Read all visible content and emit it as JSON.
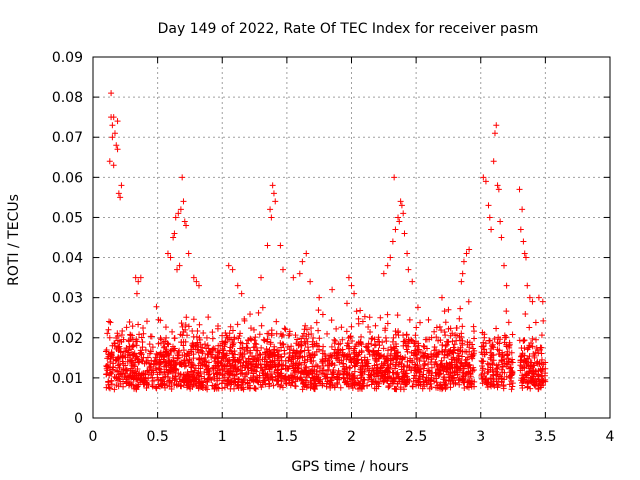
{
  "chart_data": {
    "type": "scatter",
    "title": "Day 149 of 2022, Rate Of TEC Index for receiver pasm",
    "xlabel": "GPS time / hours",
    "ylabel": "ROTI / TECUs",
    "xlim": [
      0,
      4
    ],
    "ylim": [
      0,
      0.09
    ],
    "xticks": [
      "0",
      "0.5",
      "1",
      "1.5",
      "2",
      "2.5",
      "3",
      "3.5",
      "4"
    ],
    "yticks": [
      "0",
      "0.01",
      "0.02",
      "0.03",
      "0.04",
      "0.05",
      "0.06",
      "0.07",
      "0.08",
      "0.09"
    ],
    "grid": true,
    "marker": "+",
    "color": "#ff0000",
    "note": "Dense scatter (~3000 points). Baseline cluster 0.005-0.03 from x=0.1 to 3.5 h with gaps near 2.95-3.0 and 3.25-3.3 h; representative high-value points listed explicitly.",
    "baseline": {
      "segments": [
        [
          0.1,
          2.95
        ],
        [
          3.0,
          3.25
        ],
        [
          3.3,
          3.5
        ]
      ],
      "y_range": [
        0.004,
        0.03
      ],
      "count": 2600
    },
    "series": [
      {
        "name": "ROTI",
        "points": [
          [
            0.14,
            0.081
          ],
          [
            0.14,
            0.075
          ],
          [
            0.16,
            0.075
          ],
          [
            0.15,
            0.073
          ],
          [
            0.17,
            0.071
          ],
          [
            0.19,
            0.074
          ],
          [
            0.15,
            0.07
          ],
          [
            0.13,
            0.064
          ],
          [
            0.16,
            0.063
          ],
          [
            0.18,
            0.068
          ],
          [
            0.19,
            0.067
          ],
          [
            0.22,
            0.058
          ],
          [
            0.2,
            0.056
          ],
          [
            0.21,
            0.055
          ],
          [
            0.12,
            0.022
          ],
          [
            0.13,
            0.02
          ],
          [
            0.15,
            0.018
          ],
          [
            0.33,
            0.035
          ],
          [
            0.35,
            0.034
          ],
          [
            0.37,
            0.035
          ],
          [
            0.34,
            0.031
          ],
          [
            0.58,
            0.041
          ],
          [
            0.6,
            0.04
          ],
          [
            0.62,
            0.045
          ],
          [
            0.64,
            0.05
          ],
          [
            0.66,
            0.051
          ],
          [
            0.68,
            0.052
          ],
          [
            0.7,
            0.054
          ],
          [
            0.69,
            0.06
          ],
          [
            0.71,
            0.049
          ],
          [
            0.72,
            0.048
          ],
          [
            0.63,
            0.046
          ],
          [
            0.67,
            0.038
          ],
          [
            0.65,
            0.037
          ],
          [
            0.74,
            0.041
          ],
          [
            0.78,
            0.035
          ],
          [
            0.8,
            0.034
          ],
          [
            0.82,
            0.033
          ],
          [
            1.05,
            0.038
          ],
          [
            1.08,
            0.037
          ],
          [
            1.12,
            0.033
          ],
          [
            1.15,
            0.031
          ],
          [
            1.3,
            0.035
          ],
          [
            1.35,
            0.043
          ],
          [
            1.37,
            0.052
          ],
          [
            1.39,
            0.058
          ],
          [
            1.4,
            0.056
          ],
          [
            1.41,
            0.054
          ],
          [
            1.38,
            0.05
          ],
          [
            1.45,
            0.043
          ],
          [
            1.47,
            0.037
          ],
          [
            1.55,
            0.035
          ],
          [
            1.6,
            0.036
          ],
          [
            1.62,
            0.039
          ],
          [
            1.65,
            0.041
          ],
          [
            1.68,
            0.034
          ],
          [
            1.75,
            0.03
          ],
          [
            1.85,
            0.032
          ],
          [
            1.98,
            0.035
          ],
          [
            2.0,
            0.033
          ],
          [
            2.02,
            0.031
          ],
          [
            2.25,
            0.036
          ],
          [
            2.28,
            0.038
          ],
          [
            2.3,
            0.04
          ],
          [
            2.32,
            0.044
          ],
          [
            2.34,
            0.047
          ],
          [
            2.36,
            0.05
          ],
          [
            2.38,
            0.054
          ],
          [
            2.39,
            0.053
          ],
          [
            2.4,
            0.051
          ],
          [
            2.33,
            0.06
          ],
          [
            2.37,
            0.049
          ],
          [
            2.41,
            0.046
          ],
          [
            2.43,
            0.041
          ],
          [
            2.44,
            0.037
          ],
          [
            2.47,
            0.034
          ],
          [
            2.7,
            0.03
          ],
          [
            2.75,
            0.027
          ],
          [
            2.85,
            0.034
          ],
          [
            2.87,
            0.039
          ],
          [
            2.89,
            0.041
          ],
          [
            2.91,
            0.042
          ],
          [
            2.86,
            0.036
          ],
          [
            3.02,
            0.06
          ],
          [
            3.04,
            0.059
          ],
          [
            3.06,
            0.053
          ],
          [
            3.07,
            0.05
          ],
          [
            3.08,
            0.047
          ],
          [
            3.1,
            0.064
          ],
          [
            3.11,
            0.071
          ],
          [
            3.12,
            0.073
          ],
          [
            3.13,
            0.058
          ],
          [
            3.14,
            0.057
          ],
          [
            3.15,
            0.049
          ],
          [
            3.16,
            0.045
          ],
          [
            3.18,
            0.038
          ],
          [
            3.2,
            0.033
          ],
          [
            3.3,
            0.057
          ],
          [
            3.32,
            0.052
          ],
          [
            3.31,
            0.047
          ],
          [
            3.33,
            0.044
          ],
          [
            3.34,
            0.041
          ],
          [
            3.35,
            0.04
          ],
          [
            3.36,
            0.033
          ],
          [
            3.38,
            0.03
          ],
          [
            3.4,
            0.029
          ],
          [
            3.45,
            0.03
          ],
          [
            3.48,
            0.029
          ]
        ]
      }
    ]
  }
}
